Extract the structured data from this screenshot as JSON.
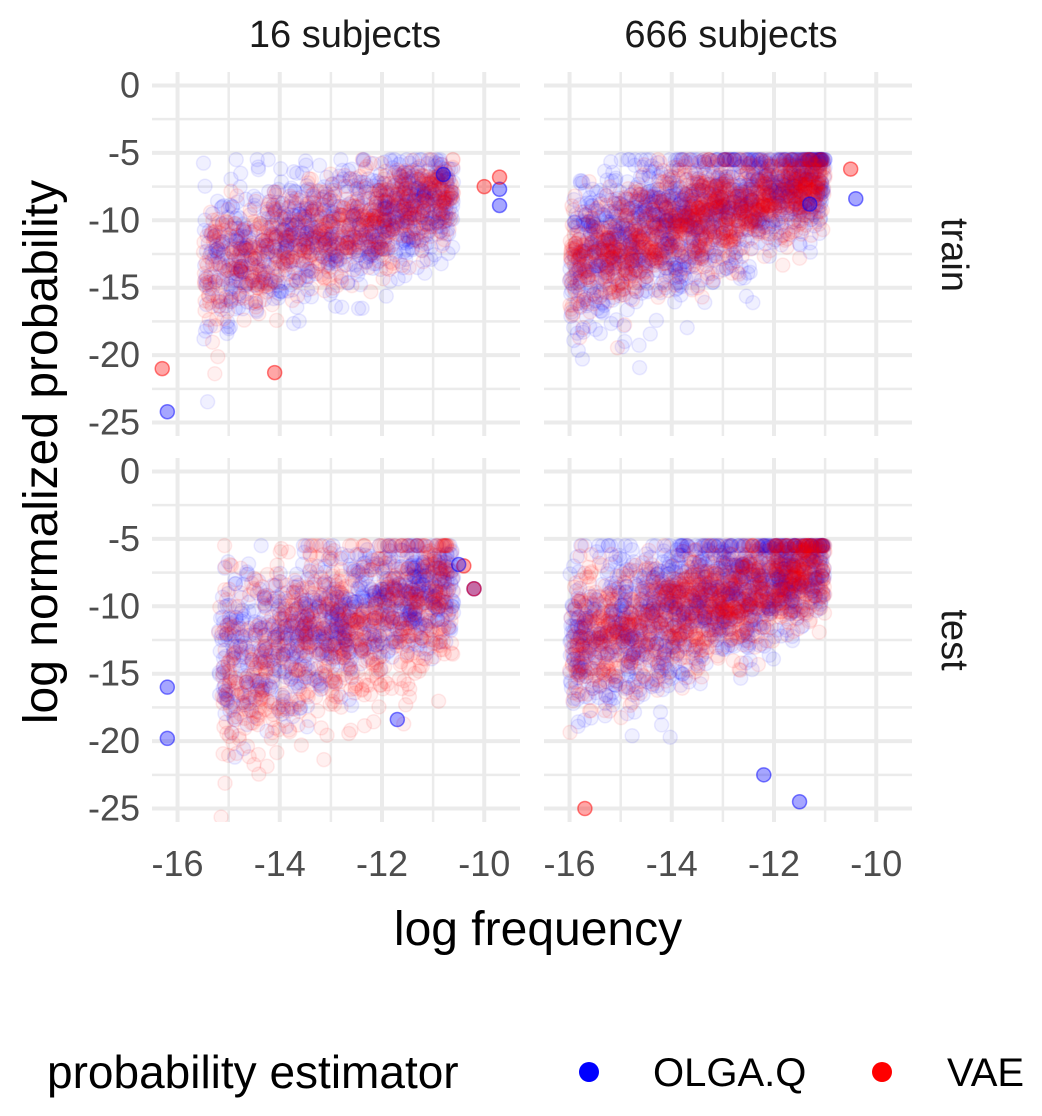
{
  "chart_data": {
    "type": "scatter",
    "facets": {
      "columns": [
        "16 subjects",
        "666 subjects"
      ],
      "rows": [
        "train",
        "test"
      ]
    },
    "xlabel": "log frequency",
    "ylabel": "log normalized probability",
    "xlim": [
      -16.5,
      -9.3
    ],
    "ylim": [
      -26,
      1
    ],
    "x_ticks": [
      -16,
      -14,
      -12,
      -10
    ],
    "x_tick_labels": [
      "-16",
      "-14",
      "-12",
      "-10"
    ],
    "y_ticks": [
      0,
      -5,
      -10,
      -15,
      -20,
      -25
    ],
    "y_tick_labels": [
      "0",
      "-5",
      "-10",
      "-15",
      "-20",
      "-25"
    ],
    "grid": true,
    "legend": {
      "title": "probability estimator",
      "position": "bottom",
      "entries": [
        {
          "name": "OLGA.Q",
          "color": "#0000ff"
        },
        {
          "name": "VAE",
          "color": "#ff0000"
        }
      ]
    },
    "series": [
      {
        "name": "OLGA.Q",
        "color": "#0000ff"
      },
      {
        "name": "VAE",
        "color": "#ff0000"
      }
    ],
    "panels": [
      {
        "column": "16 subjects",
        "row": "train",
        "clouds": [
          {
            "series": "OLGA.Q",
            "x_range": [
              -15.5,
              -10.6
            ],
            "slope": 1.1,
            "y_at_xmin": -13.6,
            "spread": 1.8,
            "n": 900
          },
          {
            "series": "VAE",
            "x_range": [
              -15.5,
              -10.6
            ],
            "slope": 1.15,
            "y_at_xmin": -13.8,
            "spread": 1.5,
            "n": 800
          }
        ],
        "points": [
          {
            "series": "OLGA.Q",
            "x": -9.7,
            "y": -7.7
          },
          {
            "series": "OLGA.Q",
            "x": -9.7,
            "y": -8.9
          },
          {
            "series": "VAE",
            "x": -9.7,
            "y": -6.8
          },
          {
            "series": "VAE",
            "x": -10.0,
            "y": -7.5
          },
          {
            "series": "OLGA.Q",
            "x": -10.8,
            "y": -6.6
          },
          {
            "series": "VAE",
            "x": -14.1,
            "y": -21.3
          },
          {
            "series": "OLGA.Q",
            "x": -16.2,
            "y": -24.2
          },
          {
            "series": "VAE",
            "x": -16.3,
            "y": -21.0
          }
        ]
      },
      {
        "column": "666 subjects",
        "row": "train",
        "clouds": [
          {
            "series": "OLGA.Q",
            "x_range": [
              -16.0,
              -11.0
            ],
            "slope": 1.3,
            "y_at_xmin": -13.0,
            "spread": 2.0,
            "n": 1300
          },
          {
            "series": "VAE",
            "x_range": [
              -16.0,
              -11.0
            ],
            "slope": 1.25,
            "y_at_xmin": -13.2,
            "spread": 1.6,
            "n": 1200
          }
        ],
        "points": [
          {
            "series": "OLGA.Q",
            "x": -10.4,
            "y": -8.4
          },
          {
            "series": "VAE",
            "x": -10.5,
            "y": -6.2
          },
          {
            "series": "OLGA.Q",
            "x": -11.3,
            "y": -8.8
          }
        ]
      },
      {
        "column": "16 subjects",
        "row": "test",
        "clouds": [
          {
            "series": "OLGA.Q",
            "x_range": [
              -15.2,
              -10.6
            ],
            "slope": 1.25,
            "y_at_xmin": -14.0,
            "spread": 1.9,
            "n": 900
          },
          {
            "series": "VAE",
            "x_range": [
              -15.2,
              -10.6
            ],
            "slope": 1.35,
            "y_at_xmin": -15.0,
            "spread": 2.6,
            "n": 900
          }
        ],
        "points": [
          {
            "series": "OLGA.Q",
            "x": -10.2,
            "y": -8.7
          },
          {
            "series": "VAE",
            "x": -10.2,
            "y": -8.7
          },
          {
            "series": "VAE",
            "x": -10.4,
            "y": -7.0
          },
          {
            "series": "OLGA.Q",
            "x": -10.5,
            "y": -6.9
          },
          {
            "series": "OLGA.Q",
            "x": -11.7,
            "y": -18.4
          },
          {
            "series": "OLGA.Q",
            "x": -16.2,
            "y": -19.8
          },
          {
            "series": "OLGA.Q",
            "x": -16.2,
            "y": -16.0
          }
        ]
      },
      {
        "column": "666 subjects",
        "row": "test",
        "clouds": [
          {
            "series": "OLGA.Q",
            "x_range": [
              -16.0,
              -11.0
            ],
            "slope": 1.3,
            "y_at_xmin": -13.0,
            "spread": 2.0,
            "n": 1300
          },
          {
            "series": "VAE",
            "x_range": [
              -16.0,
              -11.0
            ],
            "slope": 1.25,
            "y_at_xmin": -13.2,
            "spread": 1.7,
            "n": 1200
          }
        ],
        "points": [
          {
            "series": "OLGA.Q",
            "x": -12.2,
            "y": -22.5
          },
          {
            "series": "OLGA.Q",
            "x": -11.5,
            "y": -24.5
          },
          {
            "series": "VAE",
            "x": -15.7,
            "y": -25.0
          }
        ]
      }
    ]
  }
}
